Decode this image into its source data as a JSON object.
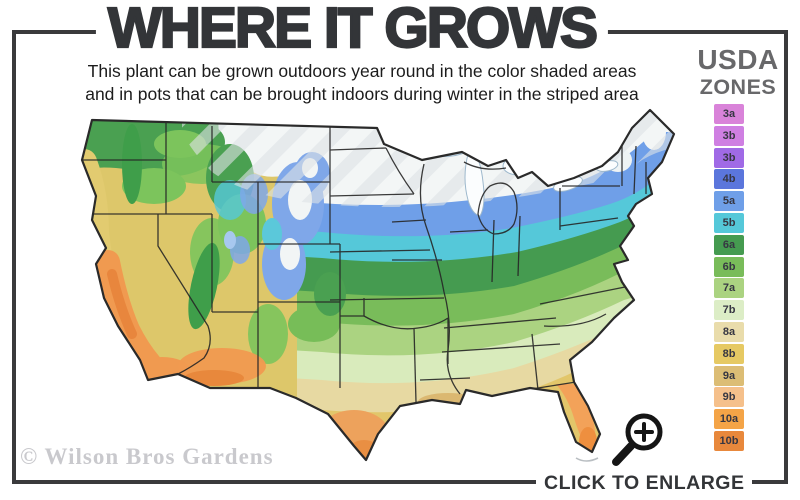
{
  "header": {
    "title": "WHERE IT GROWS",
    "subtitle_line1": "This plant can be grown outdoors year round in the color shaded areas",
    "subtitle_line2": "and in pots that can be brought indoors during winter in the striped area"
  },
  "legend": {
    "title_line1": "USDA",
    "title_line2": "ZONES",
    "zones": [
      {
        "label": "3a",
        "color": "#d983d9"
      },
      {
        "label": "3b",
        "color": "#cf7fe2"
      },
      {
        "label": "3b",
        "color": "#a06ae6"
      },
      {
        "label": "4b",
        "color": "#5b76dc"
      },
      {
        "label": "5a",
        "color": "#6f9fe8"
      },
      {
        "label": "5b",
        "color": "#55c8d9"
      },
      {
        "label": "6a",
        "color": "#459b50"
      },
      {
        "label": "6b",
        "color": "#79bc5a"
      },
      {
        "label": "7a",
        "color": "#abd381"
      },
      {
        "label": "7b",
        "color": "#dcedc6"
      },
      {
        "label": "8a",
        "color": "#e9dcab"
      },
      {
        "label": "8b",
        "color": "#e6c963"
      },
      {
        "label": "9a",
        "color": "#dcbd75"
      },
      {
        "label": "9b",
        "color": "#f5c08b"
      },
      {
        "label": "10a",
        "color": "#f4a447"
      },
      {
        "label": "10b",
        "color": "#e8883c"
      }
    ]
  },
  "map": {
    "watermark": "© Wilson Bros Gardens",
    "striped_area_note": "striped area = bring pots indoors during winter"
  },
  "footer": {
    "enlarge_label": "CLICK TO ENLARGE"
  },
  "colors": {
    "frame": "#3a3a3c",
    "title_text": "#333538",
    "legend_title_text": "#68686a",
    "watermark_text": "#c9c9cd",
    "map_unshaded": "#f3f6f6"
  }
}
